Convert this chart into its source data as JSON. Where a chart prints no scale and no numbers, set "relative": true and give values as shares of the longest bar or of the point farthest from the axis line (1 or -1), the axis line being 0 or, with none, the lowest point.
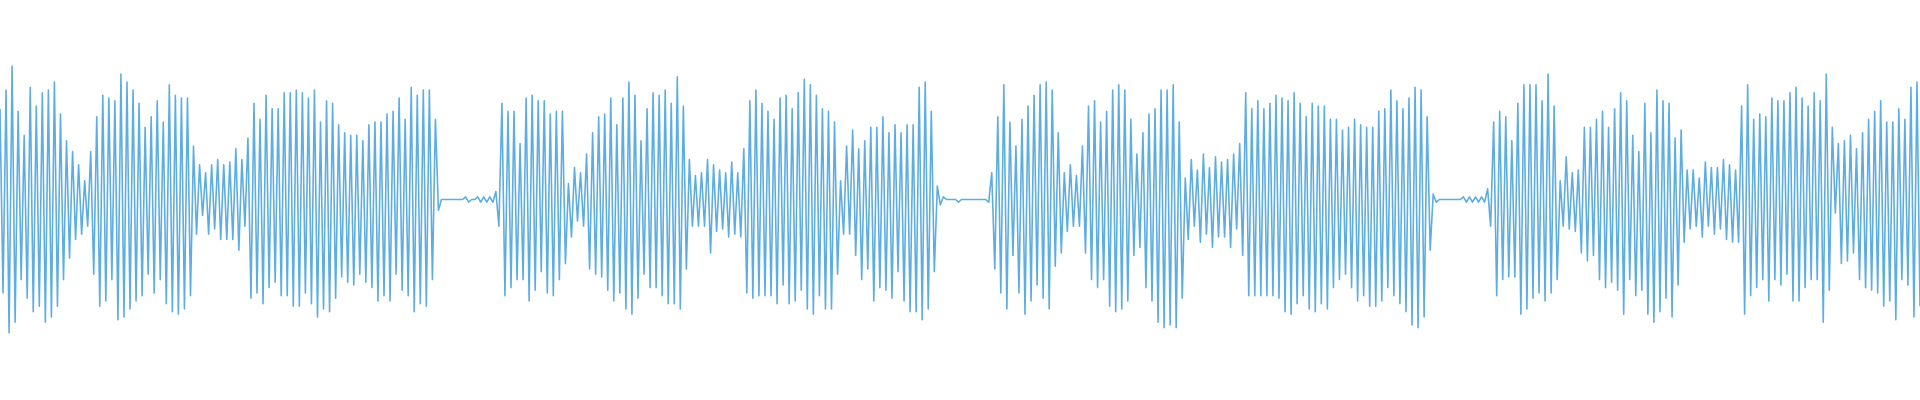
{
  "chart_data": {
    "type": "line",
    "relative": true,
    "color": "#5dade2",
    "marker": "none",
    "categories": [
      null,
      null,
      null,
      null,
      null,
      null,
      null,
      null,
      null,
      null,
      null,
      null,
      null,
      null,
      null,
      null,
      null,
      null,
      null,
      null,
      null,
      null,
      null,
      null,
      null,
      null,
      null,
      null,
      null,
      null,
      null,
      null,
      null,
      null,
      null,
      null,
      null,
      null,
      null,
      null,
      null,
      null,
      null,
      null,
      null,
      null,
      null,
      null,
      null,
      null,
      null,
      null,
      null,
      null,
      null,
      null,
      null,
      null,
      null,
      null,
      null,
      null,
      null,
      null,
      null,
      null,
      null,
      null,
      null,
      null,
      null,
      null,
      null,
      null,
      null,
      null,
      null,
      null,
      null,
      null,
      null,
      null,
      null,
      null,
      null,
      null,
      null,
      null,
      null,
      null,
      null,
      null,
      null,
      null,
      null,
      null,
      null,
      null,
      null,
      null,
      null,
      null,
      null,
      null,
      null,
      null,
      null,
      null,
      null,
      null,
      null,
      null,
      null,
      null,
      null,
      null,
      null,
      null,
      null,
      null,
      null,
      null,
      null,
      null,
      null,
      null,
      null,
      null,
      null,
      null,
      null,
      null,
      null,
      null,
      null,
      null,
      null,
      null,
      null,
      null,
      null,
      null,
      null,
      null,
      null,
      null,
      null,
      null,
      null,
      null,
      null,
      null,
      null,
      null,
      null,
      null,
      null,
      null,
      null,
      null,
      null,
      null,
      null,
      null,
      null,
      null,
      null,
      null,
      null,
      null,
      null,
      null,
      null,
      null,
      null,
      null,
      null,
      null,
      null,
      null,
      null,
      null,
      null,
      null,
      null,
      null,
      null,
      null,
      null,
      null,
      null,
      null,
      null,
      null,
      null,
      null,
      null,
      null,
      null,
      null,
      null,
      null,
      null,
      null,
      null,
      null,
      null,
      null,
      null,
      null,
      null,
      null,
      null,
      null,
      null,
      null,
      null,
      null,
      null,
      null,
      null,
      null,
      null,
      null,
      null,
      null,
      null,
      null,
      null,
      null,
      null,
      null,
      null,
      null,
      null,
      null,
      null,
      null,
      null,
      null,
      null,
      null,
      null,
      null,
      null,
      null,
      null,
      null,
      null,
      null,
      null,
      null,
      null,
      null,
      null,
      null,
      null,
      null,
      null,
      null,
      null,
      null,
      null,
      null,
      null,
      null,
      null,
      null,
      null,
      null,
      null,
      null,
      null,
      null,
      null,
      null,
      null,
      null,
      null,
      null,
      null,
      null,
      null,
      null,
      null,
      null,
      null,
      null,
      null,
      null,
      null,
      null,
      null,
      null,
      null,
      null,
      null,
      null,
      null,
      null,
      null,
      null,
      null,
      null,
      null,
      null,
      null,
      null,
      null,
      null,
      null,
      null,
      null,
      null,
      null,
      null,
      null,
      null,
      null,
      null,
      null,
      null,
      null,
      null,
      null,
      null,
      null,
      null,
      null,
      null,
      null,
      null,
      null,
      null,
      null,
      null,
      null,
      null,
      null,
      null,
      null,
      null,
      null,
      null,
      null,
      null,
      null,
      null,
      null,
      null,
      null,
      null,
      null,
      null,
      null,
      null,
      null,
      null,
      null,
      null,
      null,
      null,
      null,
      null,
      null,
      null,
      null,
      null,
      null,
      null,
      null,
      null,
      null,
      null,
      null,
      null,
      null,
      null,
      null,
      null,
      null,
      null,
      null,
      null,
      null,
      null,
      null,
      null,
      null,
      null,
      null,
      null,
      null,
      null,
      null,
      null,
      null,
      null,
      null,
      null,
      null,
      null,
      null,
      null,
      null,
      null,
      null,
      null,
      null,
      null,
      null,
      null,
      null,
      null,
      null,
      null,
      null,
      null,
      null,
      null,
      null,
      null,
      null,
      null,
      null,
      null,
      null,
      null,
      null,
      null,
      null,
      null,
      null,
      null,
      null,
      null,
      null,
      null,
      null,
      null,
      null,
      null,
      null,
      null,
      null,
      null,
      null,
      null,
      null,
      null,
      null,
      null,
      null,
      null,
      null,
      null,
      null,
      null,
      null,
      null,
      null,
      null,
      null,
      null,
      null,
      null,
      null,
      null,
      null,
      null,
      null,
      null,
      null,
      null,
      null,
      null,
      null,
      null,
      null,
      null,
      null,
      null,
      null,
      null,
      null,
      null,
      null,
      null,
      null,
      null,
      null,
      null,
      null,
      null,
      null,
      null,
      null,
      null,
      null,
      null,
      null,
      null,
      null,
      null,
      null,
      null,
      null,
      null,
      null,
      null,
      null,
      null,
      null,
      null,
      null,
      null,
      null,
      null,
      null,
      null,
      null,
      null,
      null,
      null,
      null,
      null,
      null,
      null,
      null,
      null,
      null,
      null,
      null,
      null,
      null,
      null,
      null,
      null,
      null,
      null,
      null,
      null,
      null,
      null,
      null,
      null,
      null,
      null,
      null,
      null,
      null,
      null,
      null,
      null,
      null,
      null,
      null,
      null,
      null,
      null,
      null,
      null,
      null,
      null,
      null,
      null,
      null,
      null,
      null,
      null,
      null,
      null,
      null,
      null,
      null,
      null,
      null,
      null,
      null,
      null,
      null,
      null,
      null,
      null,
      null,
      null,
      null,
      null,
      null,
      null,
      null,
      null,
      null,
      null,
      null,
      null,
      null,
      null,
      null,
      null,
      null,
      null,
      null,
      null,
      null,
      null,
      null,
      null,
      null,
      null,
      null,
      null,
      null,
      null,
      null,
      null,
      null,
      null,
      null,
      null,
      null,
      null,
      null,
      null,
      null,
      null,
      null,
      null,
      null,
      null,
      null,
      null,
      null,
      null,
      null,
      null
    ],
    "values": [
      0.84,
      0.15,
      0.91,
      0,
      1,
      0.04,
      0.83,
      0.2,
      0.74,
      0.13,
      0.92,
      0.08,
      0.85,
      0.1,
      0.9,
      0.04,
      0.91,
      0.06,
      0.94,
      0.1,
      0.82,
      0.2,
      0.72,
      0.28,
      0.68,
      0.35,
      0.63,
      0.37,
      0.57,
      0.4,
      0.68,
      0.22,
      0.81,
      0.1,
      0.89,
      0.12,
      0.88,
      0.2,
      0.87,
      0.05,
      0.97,
      0.06,
      0.94,
      0.09,
      0.91,
      0.12,
      0.86,
      0.14,
      0.77,
      0.22,
      0.81,
      0.15,
      0.87,
      0.2,
      0.79,
      0.11,
      0.93,
      0.08,
      0.89,
      0.07,
      0.88,
      0.09,
      0.88,
      0.14,
      0.7,
      0.37,
      0.63,
      0.44,
      0.6,
      0.37,
      0.63,
      0.39,
      0.65,
      0.35,
      0.63,
      0.35,
      0.64,
      0.35,
      0.69,
      0.31,
      0.65,
      0.4,
      0.73,
      0.13,
      0.86,
      0.15,
      0.8,
      0.11,
      0.89,
      0.17,
      0.84,
      0.19,
      0.84,
      0.14,
      0.9,
      0.14,
      0.9,
      0.1,
      0.91,
      0.1,
      0.9,
      0.15,
      0.88,
      0.11,
      0.91,
      0.06,
      0.79,
      0.09,
      0.87,
      0.08,
      0.86,
      0.13,
      0.78,
      0.21,
      0.75,
      0.19,
      0.74,
      0.18,
      0.74,
      0.22,
      0.72,
      0.19,
      0.78,
      0.17,
      0.79,
      0.12,
      0.79,
      0.14,
      0.82,
      0.12,
      0.83,
      0.22,
      0.88,
      0.16,
      0.8,
      0.14,
      0.92,
      0.08,
      0.89,
      0.11,
      0.91,
      0.1,
      0.91,
      0.2,
      0.8,
      0.46,
      0.5,
      0.5,
      0.5,
      0.5,
      0.5,
      0.5,
      0.5,
      0.5,
      0.51,
      0.49,
      0.5,
      0.5,
      0.51,
      0.49,
      0.51,
      0.49,
      0.51,
      0.49,
      0.53,
      0.4,
      0.86,
      0.14,
      0.83,
      0.17,
      0.83,
      0.2,
      0.71,
      0.2,
      0.88,
      0.12,
      0.89,
      0.16,
      0.87,
      0.23,
      0.87,
      0.15,
      0.82,
      0.14,
      0.83,
      0.2,
      0.83,
      0.26,
      0.56,
      0.36,
      0.62,
      0.42,
      0.6,
      0.4,
      0.67,
      0.24,
      0.75,
      0.22,
      0.81,
      0.21,
      0.82,
      0.16,
      0.88,
      0.12,
      0.78,
      0.15,
      0.88,
      0.09,
      0.94,
      0.07,
      0.89,
      0.13,
      0.72,
      0.22,
      0.84,
      0.17,
      0.9,
      0.17,
      0.89,
      0.14,
      0.91,
      0.11,
      0.86,
      0.11,
      0.96,
      0.09,
      0.85,
      0.24,
      0.65,
      0.4,
      0.59,
      0.4,
      0.6,
      0.4,
      0.65,
      0.3,
      0.63,
      0.38,
      0.61,
      0.39,
      0.6,
      0.36,
      0.64,
      0.37,
      0.6,
      0.36,
      0.69,
      0.15,
      0.87,
      0.13,
      0.91,
      0.14,
      0.86,
      0.14,
      0.83,
      0.14,
      0.8,
      0.11,
      0.88,
      0.18,
      0.89,
      0.11,
      0.84,
      0.12,
      0.9,
      0.16,
      0.95,
      0.09,
      0.93,
      0.07,
      0.89,
      0.14,
      0.84,
      0.09,
      0.83,
      0.09,
      0.79,
      0.22,
      0.57,
      0.37,
      0.7,
      0.37,
      0.76,
      0.29,
      0.69,
      0.2,
      0.72,
      0.24,
      0.77,
      0.12,
      0.77,
      0.17,
      0.81,
      0.16,
      0.75,
      0.13,
      0.78,
      0.23,
      0.75,
      0.12,
      0.78,
      0.08,
      0.78,
      0.08,
      0.92,
      0.05,
      0.94,
      0.09,
      0.83,
      0.23,
      0.55,
      0.48,
      0.51,
      0.5,
      0.5,
      0.5,
      0.5,
      0.49,
      0.5,
      0.5,
      0.5,
      0.5,
      0.5,
      0.5,
      0.5,
      0.5,
      0.5,
      0.49,
      0.6,
      0.24,
      0.81,
      0.15,
      0.93,
      0.09,
      0.79,
      0.29,
      0.7,
      0.15,
      0.8,
      0.07,
      0.85,
      0.12,
      0.89,
      0.18,
      0.93,
      0.13,
      0.94,
      0.09,
      0.91,
      0.25,
      0.75,
      0.3,
      0.6,
      0.38,
      0.63,
      0.4,
      0.59,
      0.4,
      0.7,
      0.3,
      0.85,
      0.2,
      0.87,
      0.17,
      0.79,
      0.2,
      0.83,
      0.1,
      0.91,
      0.08,
      0.93,
      0.09,
      0.91,
      0.12,
      0.8,
      0.29,
      0.67,
      0.32,
      0.75,
      0.17,
      0.82,
      0.12,
      0.84,
      0.04,
      0.91,
      0.02,
      0.91,
      0.03,
      0.93,
      0.02,
      0.79,
      0.13,
      0.58,
      0.35,
      0.65,
      0.4,
      0.61,
      0.34,
      0.67,
      0.37,
      0.62,
      0.32,
      0.66,
      0.36,
      0.64,
      0.36,
      0.65,
      0.32,
      0.67,
      0.39,
      0.71,
      0.29,
      0.9,
      0.14,
      0.84,
      0.14,
      0.87,
      0.14,
      0.84,
      0.14,
      0.86,
      0.14,
      0.89,
      0.13,
      0.88,
      0.08,
      0.87,
      0.07,
      0.9,
      0.11,
      0.86,
      0.14,
      0.81,
      0.09,
      0.86,
      0.08,
      0.85,
      0.11,
      0.85,
      0.09,
      0.8,
      0.17,
      0.8,
      0.2,
      0.76,
      0.22,
      0.77,
      0.17,
      0.8,
      0.12,
      0.78,
      0.14,
      0.77,
      0.1,
      0.77,
      0.1,
      0.83,
      0.12,
      0.84,
      0.17,
      0.91,
      0.14,
      0.87,
      0.11,
      0.84,
      0.08,
      0.88,
      0.03,
      0.92,
      0.02,
      0.91,
      0.06,
      0.81,
      0.31,
      0.52,
      0.49,
      0.5,
      0.5,
      0.5,
      0.5,
      0.5,
      0.5,
      0.5,
      0.5,
      0.51,
      0.49,
      0.51,
      0.49,
      0.51,
      0.49,
      0.51,
      0.49,
      0.54,
      0.4,
      0.79,
      0.14,
      0.83,
      0.2,
      0.81,
      0.21,
      0.72,
      0.21,
      0.86,
      0.07,
      0.93,
      0.09,
      0.93,
      0.13,
      0.93,
      0.15,
      0.87,
      0.12,
      0.97,
      0.15,
      0.85,
      0.2,
      0.57,
      0.4,
      0.66,
      0.39,
      0.6,
      0.38,
      0.61,
      0.3,
      0.77,
      0.27,
      0.77,
      0.29,
      0.8,
      0.2,
      0.83,
      0.17,
      0.77,
      0.19,
      0.84,
      0.16,
      0.9,
      0.07,
      0.87,
      0.2,
      0.74,
      0.14,
      0.68,
      0.16,
      0.86,
      0.07,
      0.75,
      0.04,
      0.91,
      0.08,
      0.87,
      0.13,
      0.86,
      0.06,
      0.73,
      0.18,
      0.76,
      0.34,
      0.61,
      0.39,
      0.61,
      0.4,
      0.58,
      0.36,
      0.64,
      0.4,
      0.62,
      0.37,
      0.62,
      0.39,
      0.65,
      0.35,
      0.63,
      0.34,
      0.61,
      0.34,
      0.85,
      0.07,
      0.93,
      0.14,
      0.8,
      0.17,
      0.82,
      0.2,
      0.81,
      0.12,
      0.88,
      0.2,
      0.87,
      0.18,
      0.87,
      0.22,
      0.9,
      0.12,
      0.92,
      0.12,
      0.88,
      0.17,
      0.85,
      0.2,
      0.9,
      0.2,
      0.87,
      0.04,
      0.97,
      0.16,
      0.77,
      0.45,
      0.71,
      0.26,
      0.72,
      0.27,
      0.74,
      0.3,
      0.69,
      0.2,
      0.75,
      0.17,
      0.8,
      0.16,
      0.83,
      0.15,
      0.87,
      0.1,
      0.79,
      0.12,
      0.79,
      0.05,
      0.84,
      0.2,
      0.8,
      0.18,
      0.92,
      0.06,
      0.94,
      0.1
    ]
  }
}
